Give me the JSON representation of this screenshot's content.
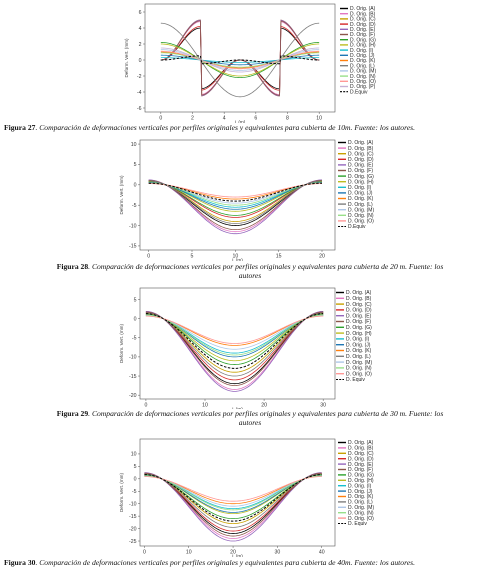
{
  "figures": [
    {
      "caption_label": "Figura 27",
      "caption_text": ". Comparación de deformaciones verticales por perfiles originales y equivalentes para cubierta de 10m. Fuente: los autores.",
      "chart_data": {
        "type": "line",
        "xlabel": "L (m)",
        "ylabel": "Deform. Vert. (mm)",
        "xlim": [
          -1,
          11
        ],
        "ylim": [
          -6.5,
          7
        ],
        "xticks": [
          0,
          2,
          4,
          6,
          8,
          10
        ],
        "yticks": [
          -6,
          -4,
          -2,
          0,
          2,
          4,
          6
        ],
        "legend_position": "top-right",
        "series": [
          {
            "name": "D. Orig. (A)",
            "color": "#000000",
            "A": 4.0
          },
          {
            "name": "D. Orig. (B)",
            "color": "#e377c2",
            "A": 4.8
          },
          {
            "name": "D. Orig. (C)",
            "color": "#c8a000",
            "A": 5.0
          },
          {
            "name": "D. Orig. (D)",
            "color": "#d62728",
            "A": 4.2
          },
          {
            "name": "D. Orig. (E)",
            "color": "#9467bd",
            "A": 5.0
          },
          {
            "name": "D. Orig. (F)",
            "color": "#8c564b",
            "A": 4.9
          },
          {
            "name": "D. Orig. (G)",
            "color": "#2ca02c",
            "A": 2.2
          },
          {
            "name": "D. Orig. (H)",
            "color": "#bcbd22",
            "A": 2.0
          },
          {
            "name": "D. Orig. (I)",
            "color": "#17becf",
            "A": 0.3
          },
          {
            "name": "D. Orig. (J)",
            "color": "#1f77b4",
            "A": 0.6
          },
          {
            "name": "D. Orig. (K)",
            "color": "#ff7f0e",
            "A": 1.0
          },
          {
            "name": "D. Orig. (L)",
            "color": "#7f7f7f",
            "A": 4.6
          },
          {
            "name": "D. Orig. (M)",
            "color": "#aec7e8",
            "A": 1.3
          },
          {
            "name": "D. Orig. (N)",
            "color": "#98df8a",
            "A": 0.9
          },
          {
            "name": "D. Orig. (O)",
            "color": "#ff9896",
            "A": 1.1
          },
          {
            "name": "D. Orig. (P)",
            "color": "#c5b0d5",
            "A": 1.5
          },
          {
            "name": "D.Equiv",
            "color": "#000000",
            "dashed": true,
            "A": 1.3
          }
        ]
      }
    },
    {
      "caption_label": "Figura 28",
      "caption_text": ". Comparación de deformaciones verticales por perfiles originales y equivalentes para cubierta de 20 m. Fuente: los autores",
      "chart_data": {
        "type": "line",
        "xlabel": "L (m)",
        "ylabel": "Deform. Vert. (mm)",
        "xlim": [
          -1,
          21.5
        ],
        "ylim": [
          -16,
          11
        ],
        "xticks": [
          0,
          5,
          10,
          15,
          20
        ],
        "yticks": [
          -15,
          -10,
          -5,
          0,
          5,
          10
        ],
        "legend_position": "top-right",
        "series": [
          {
            "name": "D. Orig. (A)",
            "color": "#000000",
            "A": 10.0
          },
          {
            "name": "D. Orig. (B)",
            "color": "#e377c2",
            "A": 11.5
          },
          {
            "name": "D. Orig. (C)",
            "color": "#c8a000",
            "A": 9.0
          },
          {
            "name": "D. Orig. (D)",
            "color": "#d62728",
            "A": 8.0
          },
          {
            "name": "D. Orig. (E)",
            "color": "#9467bd",
            "A": 12.0
          },
          {
            "name": "D. Orig. (F)",
            "color": "#8c564b",
            "A": 11.0
          },
          {
            "name": "D. Orig. (G)",
            "color": "#2ca02c",
            "A": 7.5
          },
          {
            "name": "D. Orig. (H)",
            "color": "#bcbd22",
            "A": 6.5
          },
          {
            "name": "D. Orig. (I)",
            "color": "#17becf",
            "A": 5.5
          },
          {
            "name": "D. Orig. (J)",
            "color": "#1f77b4",
            "A": 6.0
          },
          {
            "name": "D. Orig. (K)",
            "color": "#ff7f0e",
            "A": 3.5
          },
          {
            "name": "D. Orig. (L)",
            "color": "#7f7f7f",
            "A": 9.5
          },
          {
            "name": "D. Orig. (M)",
            "color": "#aec7e8",
            "A": 4.5
          },
          {
            "name": "D. Orig. (N)",
            "color": "#98df8a",
            "A": 5.0
          },
          {
            "name": "D. Orig. (O)",
            "color": "#ff9896",
            "A": 3.0
          },
          {
            "name": "D.Equiv",
            "color": "#000000",
            "dashed": true,
            "A": 4.0
          }
        ]
      }
    },
    {
      "caption_label": "Figura 29",
      "caption_text": ". Comparación de deformaciones verticales por perfiles originales y equivalentes para cubierta de 30 m. Fuente: los autores",
      "chart_data": {
        "type": "line",
        "xlabel": "L (m)",
        "ylabel": "Deform. Vert. (mm)",
        "xlim": [
          -1,
          32
        ],
        "ylim": [
          -21,
          8
        ],
        "xticks": [
          0,
          10,
          20,
          30
        ],
        "yticks": [
          -20,
          -15,
          -10,
          -5,
          0,
          5
        ],
        "legend_position": "top-right",
        "series": [
          {
            "name": "D. Orig. (A)",
            "color": "#000000",
            "A": 17.0
          },
          {
            "name": "D. Orig. (B)",
            "color": "#e377c2",
            "A": 18.5
          },
          {
            "name": "D. Orig. (C)",
            "color": "#c8a000",
            "A": 14.0
          },
          {
            "name": "D. Orig. (D)",
            "color": "#d62728",
            "A": 16.0
          },
          {
            "name": "D. Orig. (E)",
            "color": "#9467bd",
            "A": 19.0
          },
          {
            "name": "D. Orig. (F)",
            "color": "#8c564b",
            "A": 17.5
          },
          {
            "name": "D. Orig. (G)",
            "color": "#2ca02c",
            "A": 12.0
          },
          {
            "name": "D. Orig. (H)",
            "color": "#bcbd22",
            "A": 11.0
          },
          {
            "name": "D. Orig. (I)",
            "color": "#17becf",
            "A": 9.0
          },
          {
            "name": "D. Orig. (J)",
            "color": "#1f77b4",
            "A": 10.0
          },
          {
            "name": "D. Orig. (K)",
            "color": "#ff7f0e",
            "A": 7.0
          },
          {
            "name": "D. Orig. (L)",
            "color": "#7f7f7f",
            "A": 15.0
          },
          {
            "name": "D. Orig. (M)",
            "color": "#aec7e8",
            "A": 8.0
          },
          {
            "name": "D. Orig. (N)",
            "color": "#98df8a",
            "A": 9.5
          },
          {
            "name": "D. Orig. (O)",
            "color": "#ff9896",
            "A": 6.5
          },
          {
            "name": "D. Equiv",
            "color": "#000000",
            "dashed": true,
            "A": 13.0
          }
        ]
      }
    },
    {
      "caption_label": "Figura 30",
      "caption_text": ". Comparación de deformaciones verticales por perfiles originales y equivalentes para cubierta de 40m. Fuente: los autores.",
      "chart_data": {
        "type": "line",
        "xlabel": "L (m)",
        "ylabel": "Deform. Vert. (mm)",
        "xlim": [
          -1,
          43
        ],
        "ylim": [
          -27,
          16
        ],
        "xticks": [
          0,
          10,
          20,
          30,
          40
        ],
        "yticks": [
          -25,
          -20,
          -15,
          -10,
          -5,
          0,
          5,
          10
        ],
        "legend_position": "top-right",
        "series": [
          {
            "name": "D. Orig. (A)",
            "color": "#000000",
            "A": 22.0
          },
          {
            "name": "D. Orig. (B)",
            "color": "#e377c2",
            "A": 24.0
          },
          {
            "name": "D. Orig. (C)",
            "color": "#c8a000",
            "A": 18.0
          },
          {
            "name": "D. Orig. (D)",
            "color": "#d62728",
            "A": 21.0
          },
          {
            "name": "D. Orig. (E)",
            "color": "#9467bd",
            "A": 25.0
          },
          {
            "name": "D. Orig. (F)",
            "color": "#8c564b",
            "A": 23.0
          },
          {
            "name": "D. Orig. (G)",
            "color": "#2ca02c",
            "A": 16.0
          },
          {
            "name": "D. Orig. (H)",
            "color": "#bcbd22",
            "A": 14.0
          },
          {
            "name": "D. Orig. (I)",
            "color": "#17becf",
            "A": 12.0
          },
          {
            "name": "D. Orig. (J)",
            "color": "#1f77b4",
            "A": 13.5
          },
          {
            "name": "D. Orig. (K)",
            "color": "#ff7f0e",
            "A": 10.0
          },
          {
            "name": "D. Orig. (L)",
            "color": "#7f7f7f",
            "A": 19.5
          },
          {
            "name": "D. Orig. (M)",
            "color": "#aec7e8",
            "A": 11.0
          },
          {
            "name": "D. Orig. (N)",
            "color": "#98df8a",
            "A": 12.5
          },
          {
            "name": "D. Orig. (O)",
            "color": "#ff9896",
            "A": 9.0
          },
          {
            "name": "D. Equiv",
            "color": "#000000",
            "dashed": true,
            "A": 17.0
          }
        ]
      }
    }
  ]
}
